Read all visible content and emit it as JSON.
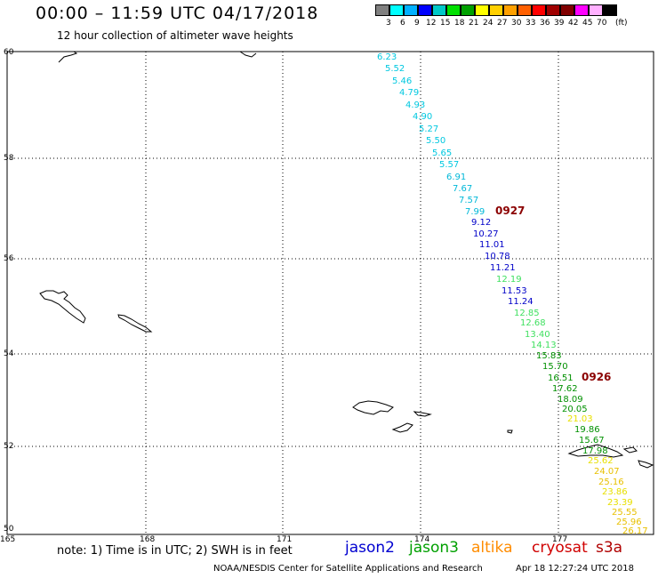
{
  "title": "00:00 – 11:59 UTC 04/17/2018",
  "subtitle": "12 hour collection of altimeter wave heights",
  "scale": {
    "labels": [
      "3",
      "6",
      "9",
      "12",
      "15",
      "18",
      "21",
      "24",
      "27",
      "30",
      "33",
      "36",
      "39",
      "42",
      "45",
      "70",
      "(ft)"
    ],
    "colors": [
      "#808080",
      "#00ffff",
      "#00b0ff",
      "#0000ff",
      "#00c8c8",
      "#00e000",
      "#00a000",
      "#ffff00",
      "#ffd000",
      "#ffa000",
      "#ff6000",
      "#ff0000",
      "#a00000",
      "#800000",
      "#ff00ff",
      "#ffb0ff",
      "#000000"
    ]
  },
  "map": {
    "lat_ticks": [
      "60",
      "58",
      "56",
      "54",
      "52",
      "50"
    ],
    "lon_ticks": [
      "165",
      "168",
      "171",
      "174",
      "177"
    ],
    "time_labels": [
      {
        "text": "0927",
        "color": "#8b0000"
      },
      {
        "text": "0926",
        "color": "#8b0000"
      }
    ],
    "wave_heights": [
      {
        "text": "6.23",
        "color": "#00c8e0"
      },
      {
        "text": "5.52",
        "color": "#00c8e0"
      },
      {
        "text": "5.46",
        "color": "#00c8e0"
      },
      {
        "text": "4.79",
        "color": "#00c8e0"
      },
      {
        "text": "4.93",
        "color": "#00c8e0"
      },
      {
        "text": "4.90",
        "color": "#00c8e0"
      },
      {
        "text": "5.27",
        "color": "#00c8e0"
      },
      {
        "text": "5.50",
        "color": "#00c8e0"
      },
      {
        "text": "5.65",
        "color": "#00c8e0"
      },
      {
        "text": "5.57",
        "color": "#00c8e0"
      },
      {
        "text": "6.91",
        "color": "#00b8d8"
      },
      {
        "text": "7.67",
        "color": "#00b8d8"
      },
      {
        "text": "7.57",
        "color": "#00b8d8"
      },
      {
        "text": "7.99",
        "color": "#00b8d8"
      },
      {
        "text": "9.12",
        "color": "#0000c8"
      },
      {
        "text": "10.27",
        "color": "#0000c8"
      },
      {
        "text": "11.01",
        "color": "#0000c8"
      },
      {
        "text": "10.78",
        "color": "#0000c8"
      },
      {
        "text": "11.21",
        "color": "#0000c8"
      },
      {
        "text": "12.19",
        "color": "#40e060"
      },
      {
        "text": "11.53",
        "color": "#0000c8"
      },
      {
        "text": "11.24",
        "color": "#0000c8"
      },
      {
        "text": "12.85",
        "color": "#40e060"
      },
      {
        "text": "12.68",
        "color": "#40e060"
      },
      {
        "text": "13.40",
        "color": "#40e060"
      },
      {
        "text": "14.13",
        "color": "#40e060"
      },
      {
        "text": "15.83",
        "color": "#009000"
      },
      {
        "text": "15.70",
        "color": "#009000"
      },
      {
        "text": "16.51",
        "color": "#009000"
      },
      {
        "text": "17.62",
        "color": "#009000"
      },
      {
        "text": "18.09",
        "color": "#009000"
      },
      {
        "text": "20.05",
        "color": "#009000"
      },
      {
        "text": "21.03",
        "color": "#e8e000"
      },
      {
        "text": "19.86",
        "color": "#009000"
      },
      {
        "text": "15.67",
        "color": "#009000"
      },
      {
        "text": "17.98",
        "color": "#009000"
      },
      {
        "text": "25.62",
        "color": "#e8e000"
      },
      {
        "text": "24.07",
        "color": "#e8c000"
      },
      {
        "text": "25.16",
        "color": "#e8c000"
      },
      {
        "text": "23.86",
        "color": "#e8e000"
      },
      {
        "text": "23.39",
        "color": "#e8e000"
      },
      {
        "text": "25.55",
        "color": "#e8c000"
      },
      {
        "text": "25.96",
        "color": "#e8c000"
      },
      {
        "text": "26.17",
        "color": "#e8c000"
      }
    ]
  },
  "note": "note: 1) Time is in UTC; 2) SWH is in feet",
  "legend": [
    {
      "text": "jason2",
      "color": "#0000d0"
    },
    {
      "text": "jason3",
      "color": "#00a000"
    },
    {
      "text": "altika",
      "color": "#ff8c00"
    },
    {
      "text": "cryosat",
      "color": "#d00000"
    },
    {
      "text": "s3a",
      "color": "#b00000"
    }
  ],
  "footer": {
    "left": "NOAA/NESDIS Center for Satellite Applications and Research",
    "right": "Apr 18 12:27:24 UTC 2018"
  }
}
